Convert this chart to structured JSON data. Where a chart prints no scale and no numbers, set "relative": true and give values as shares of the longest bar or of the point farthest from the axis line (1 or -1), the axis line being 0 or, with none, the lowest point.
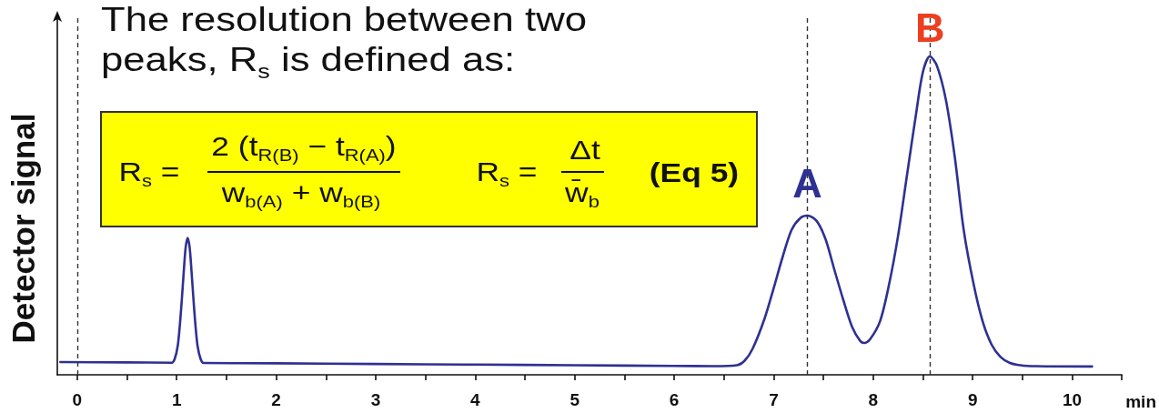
{
  "chart_data": {
    "type": "line",
    "title": "The resolution between two peaks, R$_{s}$ is defined as:",
    "xlabel": "min",
    "ylabel": "Detector signal",
    "relative": true,
    "x": [
      -0.17,
      0.5,
      0.95,
      0.98,
      1.01,
      1.03,
      1.05,
      1.07,
      1.09,
      1.11,
      1.13,
      1.15,
      1.17,
      1.19,
      1.21,
      1.24,
      1.27,
      2,
      3,
      4,
      5,
      6,
      6.4,
      6.63,
      6.71,
      6.79,
      6.91,
      7,
      7.09,
      7.18,
      7.27,
      7.34,
      7.43,
      7.52,
      7.61,
      7.7,
      7.79,
      7.87,
      7.91,
      7.97,
      8.07,
      8.16,
      8.25,
      8.34,
      8.43,
      8.5,
      8.57,
      8.64,
      8.73,
      8.82,
      8.91,
      9.01,
      9.1,
      9.19,
      9.28,
      9.37,
      9.48,
      9.64,
      10.2
    ],
    "values": [
      0.04,
      0.039,
      0.038,
      0.05,
      0.09,
      0.15,
      0.23,
      0.32,
      0.4,
      0.43,
      0.4,
      0.32,
      0.23,
      0.15,
      0.09,
      0.05,
      0.037,
      0.036,
      0.034,
      0.032,
      0.03,
      0.028,
      0.027,
      0.03,
      0.045,
      0.083,
      0.178,
      0.272,
      0.37,
      0.455,
      0.493,
      0.5,
      0.484,
      0.427,
      0.33,
      0.235,
      0.149,
      0.106,
      0.1,
      0.112,
      0.169,
      0.284,
      0.436,
      0.627,
      0.817,
      0.951,
      1,
      0.971,
      0.865,
      0.685,
      0.455,
      0.284,
      0.168,
      0.095,
      0.056,
      0.038,
      0.03,
      0.027,
      0.026
    ],
    "color": "#2e3192",
    "xlim": [
      -0.2,
      10.5
    ],
    "xticks": [
      0,
      {
        "value": 0.5,
        "label": null
      },
      1,
      {
        "value": 1.5,
        "label": null
      },
      2,
      {
        "value": 2.5,
        "label": null
      },
      3,
      {
        "value": 3.5,
        "label": null
      },
      4,
      {
        "value": 4.5,
        "label": null
      },
      5,
      {
        "value": 5.5,
        "label": null
      },
      6,
      {
        "value": 6.5,
        "label": null
      },
      7,
      {
        "value": 7.5,
        "label": null
      },
      8,
      {
        "value": 8.5,
        "label": null
      },
      9,
      {
        "value": 9.5,
        "label": null
      },
      10,
      {
        "value": 10.5,
        "label": null
      }
    ],
    "ref_lines": [
      {
        "axis": "x",
        "value": 0,
        "color": "#333333",
        "line_style": "dashed"
      },
      {
        "axis": "x",
        "value": 7.34,
        "color": "#333333",
        "line_style": "dashed"
      },
      {
        "axis": "x",
        "value": 8.57,
        "color": "#333333",
        "line_style": "dashed"
      }
    ],
    "annotations": [
      "R$_{s}$ =",
      "2 (t$_{R(B)}$ − t$_{R(A)}$)",
      "w$_{b(A)}$ + w$_{b(B)}$",
      "R$_{s}$ =",
      "Δt",
      "w̄$_{b}$",
      "(Eq 5)",
      {
        "text": "A",
        "x": 7.34,
        "y": 0.6
      },
      {
        "text": "B",
        "x": 8.57,
        "y": 1.09
      }
    ]
  }
}
